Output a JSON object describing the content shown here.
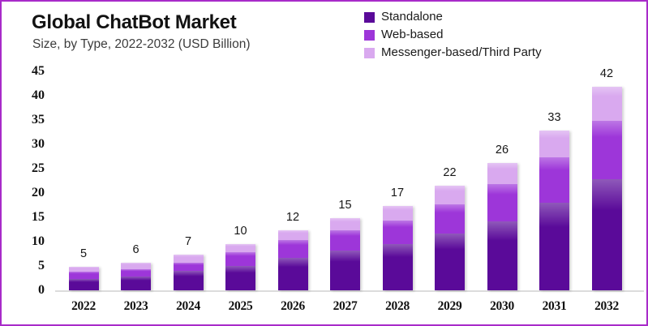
{
  "frame": {
    "border_color": "#A82BC9"
  },
  "header": {
    "title": "Global ChatBot Market",
    "subtitle": "Size, by Type, 2022-2032 (USD Billion)"
  },
  "chart_data": {
    "type": "bar",
    "stacked": true,
    "title": "Global ChatBot Market",
    "subtitle": "Size, by Type, 2022-2032 (USD Billion)",
    "unit": "USD Billion",
    "categories": [
      "2022",
      "2023",
      "2024",
      "2025",
      "2026",
      "2027",
      "2028",
      "2029",
      "2030",
      "2031",
      "2032"
    ],
    "series": [
      {
        "name": "Standalone",
        "color": "#5A0A99",
        "values": [
          2.4,
          2.9,
          4.0,
          5.0,
          6.7,
          8.2,
          9.5,
          11.7,
          14.2,
          18.0,
          22.8
        ]
      },
      {
        "name": "Web-based",
        "color": "#9D36D9",
        "values": [
          1.5,
          1.5,
          1.7,
          2.8,
          3.6,
          4.1,
          4.8,
          6.0,
          7.6,
          9.3,
          12.0
        ]
      },
      {
        "name": "Messenger-based/Third Party",
        "color": "#D9A9EF",
        "values": [
          0.9,
          1.3,
          1.6,
          1.7,
          2.0,
          2.5,
          3.0,
          3.8,
          4.4,
          5.5,
          7.0
        ]
      }
    ],
    "total_labels": [
      "5",
      "6",
      "7",
      "10",
      "12",
      "15",
      "17",
      "22",
      "26",
      "33",
      "42"
    ],
    "y_ticks": [
      0,
      5,
      10,
      15,
      20,
      25,
      30,
      35,
      40,
      45
    ],
    "ylim": [
      0,
      45
    ],
    "grid": false,
    "legend_position": "top-right",
    "axis_line_color": "#dcdcdc"
  }
}
